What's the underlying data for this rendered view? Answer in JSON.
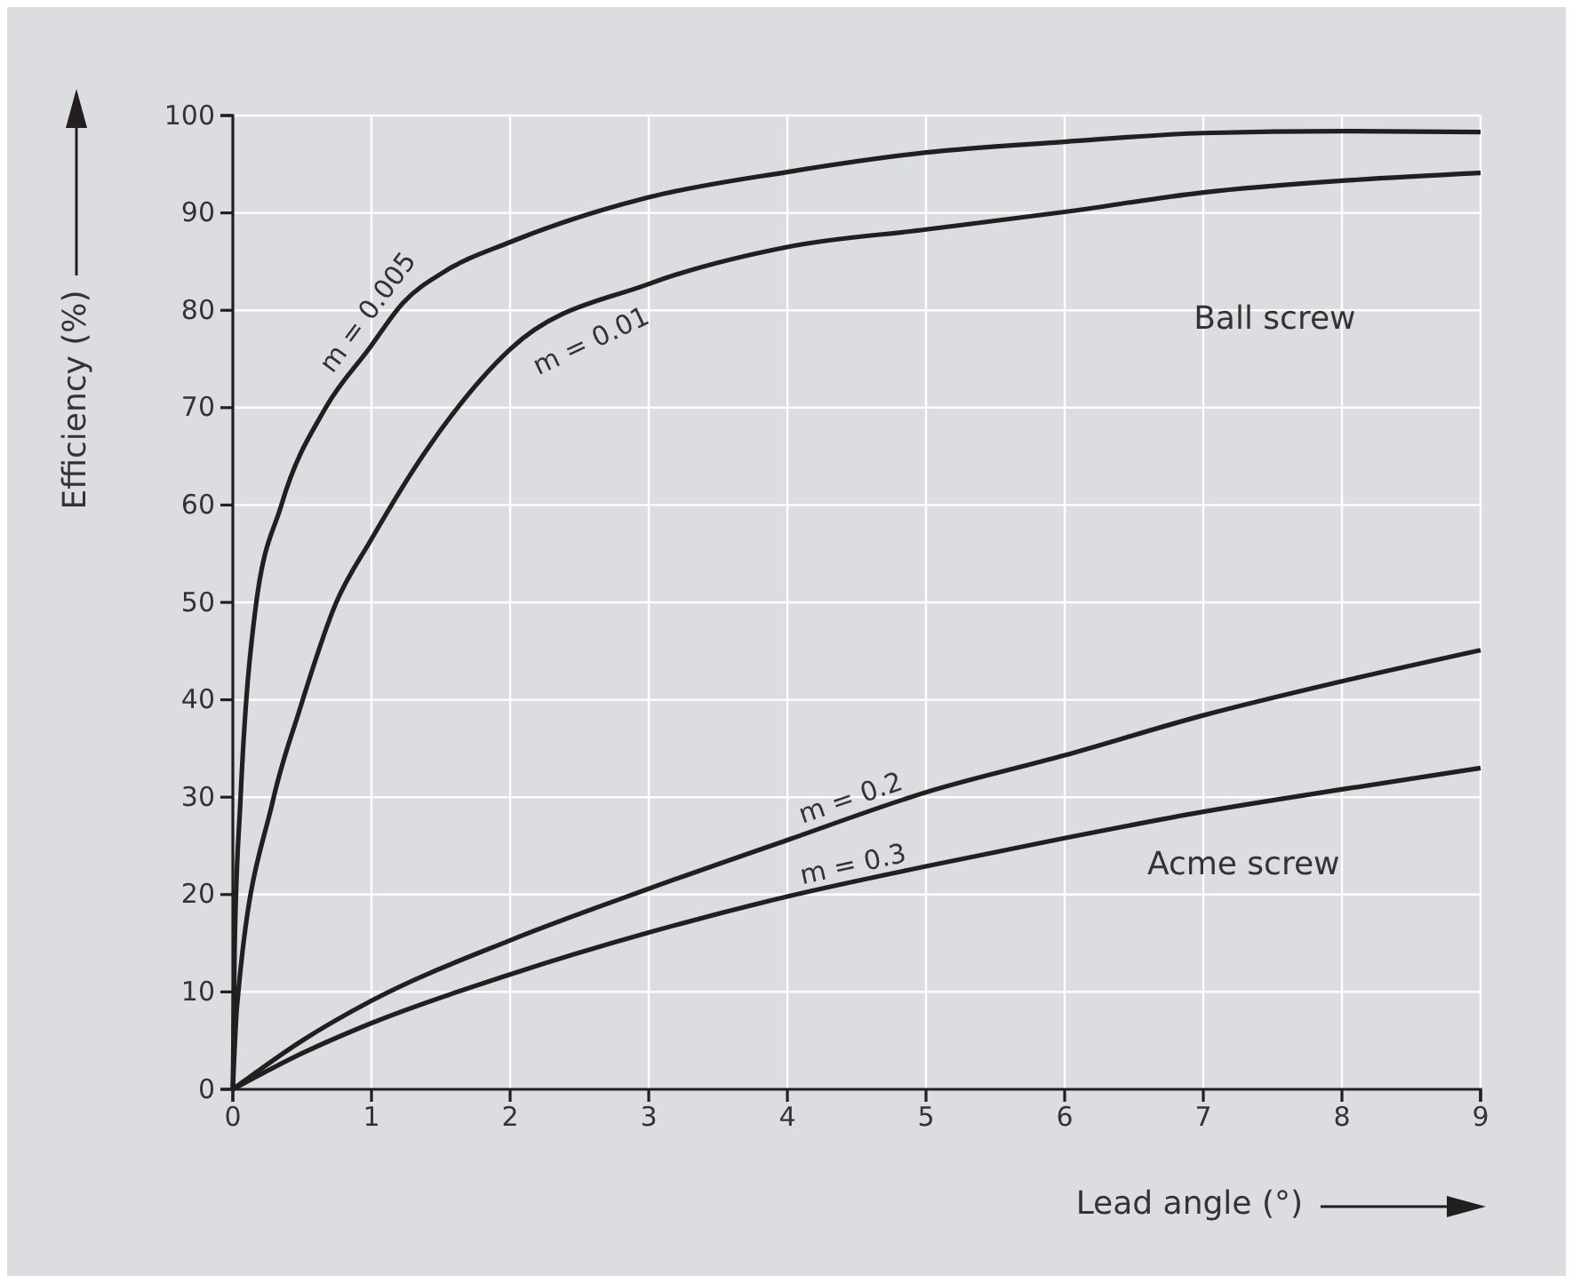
{
  "chart_data": {
    "type": "line",
    "xlabel": "Lead angle (°)",
    "ylabel": "Efficiency (%)",
    "xlim": [
      0,
      9
    ],
    "ylim": [
      0,
      100
    ],
    "xticks": [
      0,
      1,
      2,
      3,
      4,
      5,
      6,
      7,
      8,
      9
    ],
    "yticks": [
      0,
      10,
      20,
      30,
      40,
      50,
      60,
      70,
      80,
      90,
      100
    ],
    "grid": true,
    "marker": "none",
    "line_style": "solid",
    "series": [
      {
        "name": "m = 0.005",
        "color": "#231f20",
        "x": [
          0,
          0.013,
          0.055,
          0.16,
          0.35,
          0.67,
          0.98,
          1.23,
          1.53,
          2,
          3,
          4,
          5,
          6,
          7,
          8,
          9
        ],
        "values": [
          0,
          14.6,
          29.7,
          49,
          60,
          70,
          76,
          80.8,
          84,
          87,
          91.6,
          94.2,
          96.2,
          97.3,
          98.2,
          98.4,
          98.3
        ]
      },
      {
        "name": "m = 0.01",
        "color": "#231f20",
        "x": [
          0,
          0.03,
          0.29,
          0.48,
          0.74,
          1,
          1.4,
          2,
          3,
          4,
          5,
          6,
          7,
          8,
          9
        ],
        "values": [
          0,
          8.5,
          29.7,
          38.9,
          49.8,
          56.5,
          65.7,
          76,
          82.7,
          86.5,
          88.3,
          90.1,
          92.1,
          93.3,
          94.1
        ]
      },
      {
        "name": "m = 0.2",
        "color": "#231f20",
        "x": [
          0,
          0.5,
          1,
          2,
          3,
          4,
          5,
          6,
          7,
          8,
          9
        ],
        "values": [
          0,
          5,
          9.1,
          15.3,
          20.6,
          25.6,
          30.5,
          34.3,
          38.4,
          41.9,
          45.1
        ]
      },
      {
        "name": "m = 0.3",
        "color": "#231f20",
        "x": [
          0,
          0.5,
          1,
          2,
          3,
          4,
          5,
          6,
          7,
          8,
          9
        ],
        "values": [
          0,
          3.7,
          6.8,
          11.8,
          16.1,
          19.8,
          22.9,
          25.8,
          28.5,
          30.8,
          33
        ]
      }
    ],
    "annotations": [
      "Ball screw",
      "Acme screw"
    ]
  }
}
